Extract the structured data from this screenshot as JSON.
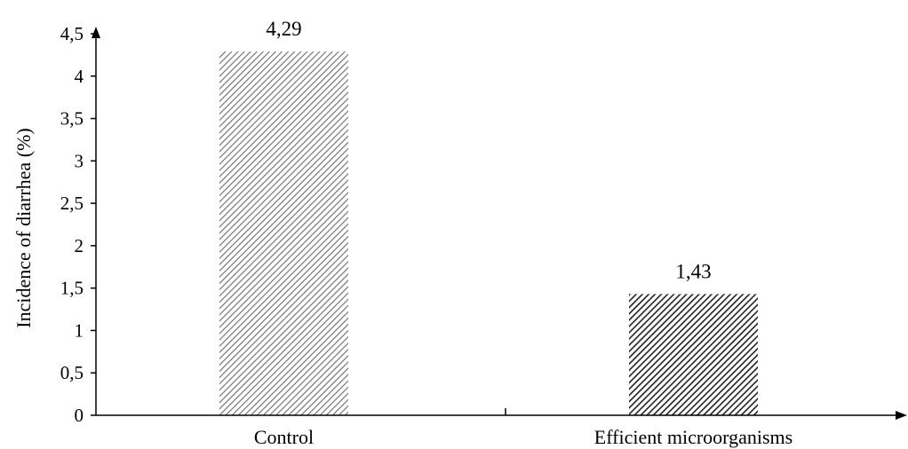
{
  "chart_data": {
    "type": "bar",
    "categories": [
      "Control",
      "Efficient microorganisms"
    ],
    "values": [
      4.29,
      1.43
    ],
    "data_labels": [
      "4,29",
      "1,43"
    ],
    "title": "",
    "xlabel": "",
    "ylabel": "Incidence of  diarrhea (%)",
    "ylim": [
      0,
      4.5
    ],
    "y_ticks": [
      0,
      0.5,
      1,
      1.5,
      2,
      2.5,
      3,
      3.5,
      4,
      4.5
    ],
    "y_tick_labels": [
      "0",
      "0,5",
      "1",
      "1,5",
      "2",
      "2,5",
      "3",
      "3,5",
      "4",
      "4,5"
    ],
    "grid": false,
    "legend": "none",
    "bar_fill_styles": [
      "light-diagonal-hatch",
      "dark-diagonal-hatch"
    ]
  }
}
